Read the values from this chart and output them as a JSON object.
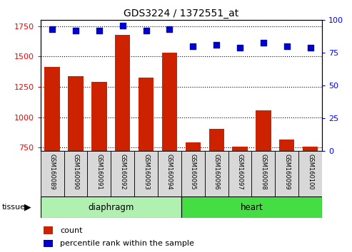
{
  "title": "GDS3224 / 1372551_at",
  "samples": [
    "GSM160089",
    "GSM160090",
    "GSM160091",
    "GSM160092",
    "GSM160093",
    "GSM160094",
    "GSM160095",
    "GSM160096",
    "GSM160097",
    "GSM160098",
    "GSM160099",
    "GSM160100"
  ],
  "counts": [
    1415,
    1340,
    1290,
    1680,
    1325,
    1530,
    790,
    905,
    755,
    1055,
    815,
    755
  ],
  "percentiles": [
    93,
    92,
    92,
    96,
    92,
    93,
    80,
    81,
    79,
    83,
    80,
    79
  ],
  "tissue_colors": {
    "diaphragm": "#b0f0b0",
    "heart": "#44dd44"
  },
  "bar_color": "#cc2200",
  "dot_color": "#0000cc",
  "ylim_left": [
    720,
    1800
  ],
  "ylim_right": [
    0,
    100
  ],
  "yticks_left": [
    750,
    1000,
    1250,
    1500,
    1750
  ],
  "yticks_right": [
    0,
    25,
    50,
    75,
    100
  ],
  "label_bg": "#d8d8d8"
}
